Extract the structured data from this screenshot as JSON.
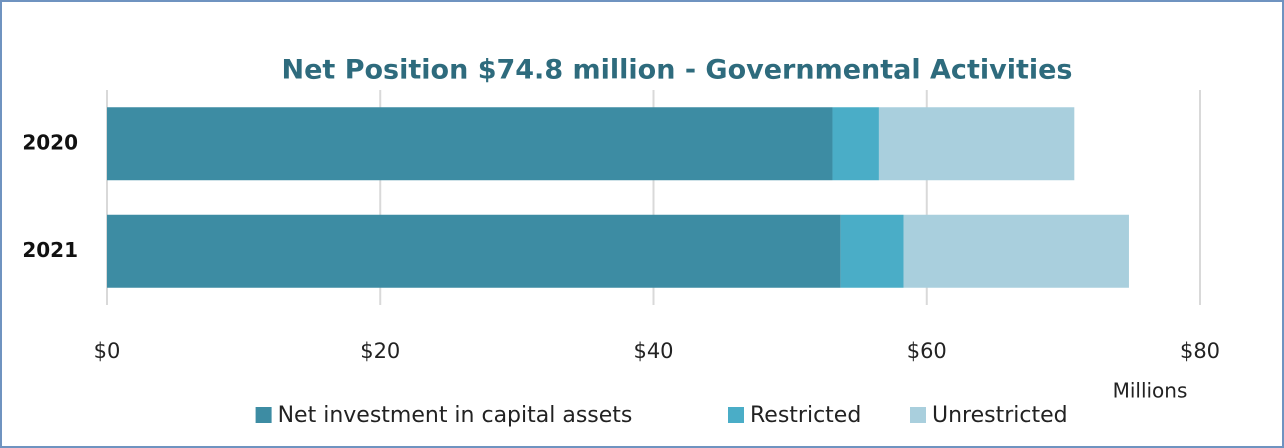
{
  "chart_data": {
    "type": "stacked-bar-horizontal",
    "title": "Net Position $74.8 million - Governmental Activities",
    "categories": [
      "2020",
      "2021"
    ],
    "series": [
      {
        "name": "Net investment in capital assets",
        "color": "#3d8ca3",
        "values": [
          53.1,
          53.7
        ]
      },
      {
        "name": "Restricted",
        "color": "#4aadc7",
        "values": [
          3.4,
          4.6
        ]
      },
      {
        "name": "Unrestricted",
        "color": "#a9cfdd",
        "values": [
          14.3,
          16.5
        ]
      }
    ],
    "xlim": [
      0,
      80
    ],
    "xticks": [
      {
        "value": 0,
        "label": "$0"
      },
      {
        "value": 20,
        "label": "$20"
      },
      {
        "value": 40,
        "label": "$40"
      },
      {
        "value": 60,
        "label": "$60"
      },
      {
        "value": 80,
        "label": "$80"
      }
    ],
    "x_unit_label": "Millions",
    "grid": true,
    "legend": "bottom"
  }
}
